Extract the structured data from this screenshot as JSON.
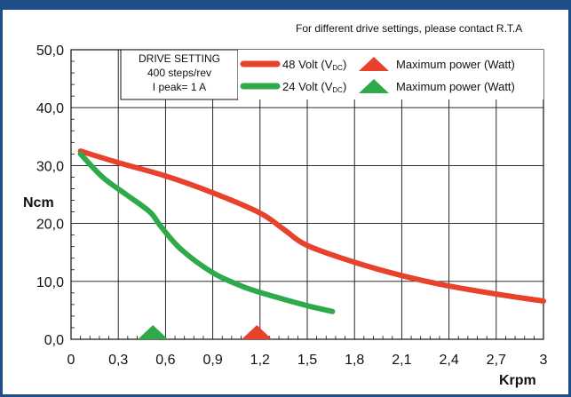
{
  "header_note": "For different drive settings, please contact R.T.A",
  "drive_setting": {
    "title": "DRIVE SETTING",
    "steps": "400 steps/rev",
    "current": "I peak= 1 A"
  },
  "legend": [
    {
      "label": "48 Volt (V",
      "subscript": "DC",
      "close": ")",
      "marker_label": "Maximum power (Watt)",
      "color": "#e8412c"
    },
    {
      "label": "24 Volt (V",
      "subscript": "DC",
      "close": ")",
      "marker_label": "Maximum power (Watt)",
      "color": "#2eaa4a"
    }
  ],
  "chart_data": {
    "type": "line",
    "xlabel": "Krpm",
    "ylabel": "Ncm",
    "xlim": [
      0,
      3
    ],
    "ylim": [
      0,
      50
    ],
    "x_ticks": [
      0,
      0.3,
      0.6,
      0.9,
      1.2,
      1.5,
      1.8,
      2.1,
      2.4,
      2.7,
      3
    ],
    "x_tick_labels": [
      "0",
      "0,3",
      "0,6",
      "0,9",
      "1,2",
      "1,5",
      "1,8",
      "2,1",
      "2,4",
      "2,7",
      "3"
    ],
    "y_ticks": [
      0,
      10,
      20,
      30,
      40,
      50
    ],
    "y_tick_labels": [
      "0,0",
      "10,0",
      "20,0",
      "30,0",
      "40,0",
      "50,0"
    ],
    "grid": true,
    "series": [
      {
        "name": "48 Volt (VDC)",
        "color": "#e8412c",
        "x": [
          0.06,
          0.3,
          0.6,
          0.9,
          1.2,
          1.35,
          1.5,
          1.8,
          2.1,
          2.4,
          2.7,
          3.0
        ],
        "y": [
          32.5,
          30.5,
          28.2,
          25.3,
          21.8,
          19.0,
          16.2,
          13.3,
          11.0,
          9.2,
          7.8,
          6.6
        ],
        "max_power_x": 1.18
      },
      {
        "name": "24 Volt (VDC)",
        "color": "#2eaa4a",
        "x": [
          0.06,
          0.2,
          0.35,
          0.5,
          0.57,
          0.7,
          0.9,
          1.1,
          1.3,
          1.5,
          1.66
        ],
        "y": [
          32.0,
          28.0,
          25.0,
          22.0,
          19.5,
          15.5,
          11.5,
          9.0,
          7.3,
          5.8,
          4.8
        ],
        "max_power_x": 0.52
      }
    ]
  }
}
